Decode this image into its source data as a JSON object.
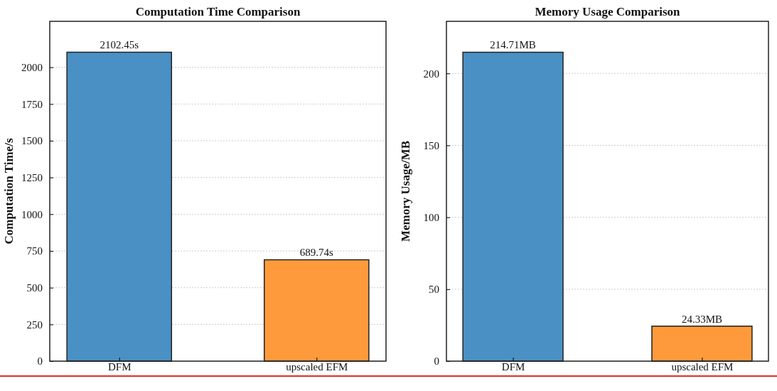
{
  "chart_data": [
    {
      "type": "bar",
      "title": "Computation Time Comparison",
      "ylabel": "Computation Time/s",
      "categories": [
        "DFM",
        "upscaled EFM"
      ],
      "values": [
        2102.45,
        689.74
      ],
      "colors": [
        "#4a90c4",
        "#ff9a3c"
      ],
      "value_labels": [
        "2102.45s",
        "689.74s"
      ],
      "ylim": [
        0,
        2312.7
      ],
      "yticks": [
        0,
        250,
        500,
        750,
        1000,
        1250,
        1500,
        1750,
        2000
      ],
      "grid": "y"
    },
    {
      "type": "bar",
      "title": "Memory Usage Comparison",
      "ylabel": "Memory Usage/MB",
      "categories": [
        "DFM",
        "upscaled EFM"
      ],
      "values": [
        214.71,
        24.33
      ],
      "colors": [
        "#4a90c4",
        "#ff9a3c"
      ],
      "value_labels": [
        "214.71MB",
        "24.33MB"
      ],
      "ylim": [
        0,
        236.2
      ],
      "yticks": [
        0,
        50,
        100,
        150,
        200
      ],
      "grid": "y"
    }
  ]
}
